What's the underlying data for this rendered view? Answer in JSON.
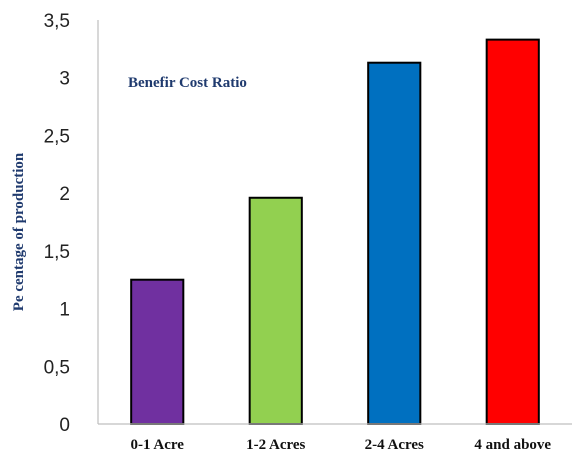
{
  "chart_data": {
    "type": "bar",
    "title": "Benefir Cost Ratio",
    "ylabel": "Pe centage of production",
    "xlabel": "",
    "categories": [
      "0-1 Acre",
      "1-2 Acres",
      "2-4 Acres",
      "4 and above"
    ],
    "values": [
      1.25,
      1.96,
      3.13,
      3.33
    ],
    "colors": [
      "#7030a0",
      "#92d050",
      "#0070c0",
      "#ff0000"
    ],
    "ylim": [
      0,
      3.5
    ],
    "yticks": [
      "0",
      "0,5",
      "1",
      "1,5",
      "2",
      "2,5",
      "3",
      "3,5"
    ],
    "grid": false,
    "legend": "none"
  }
}
